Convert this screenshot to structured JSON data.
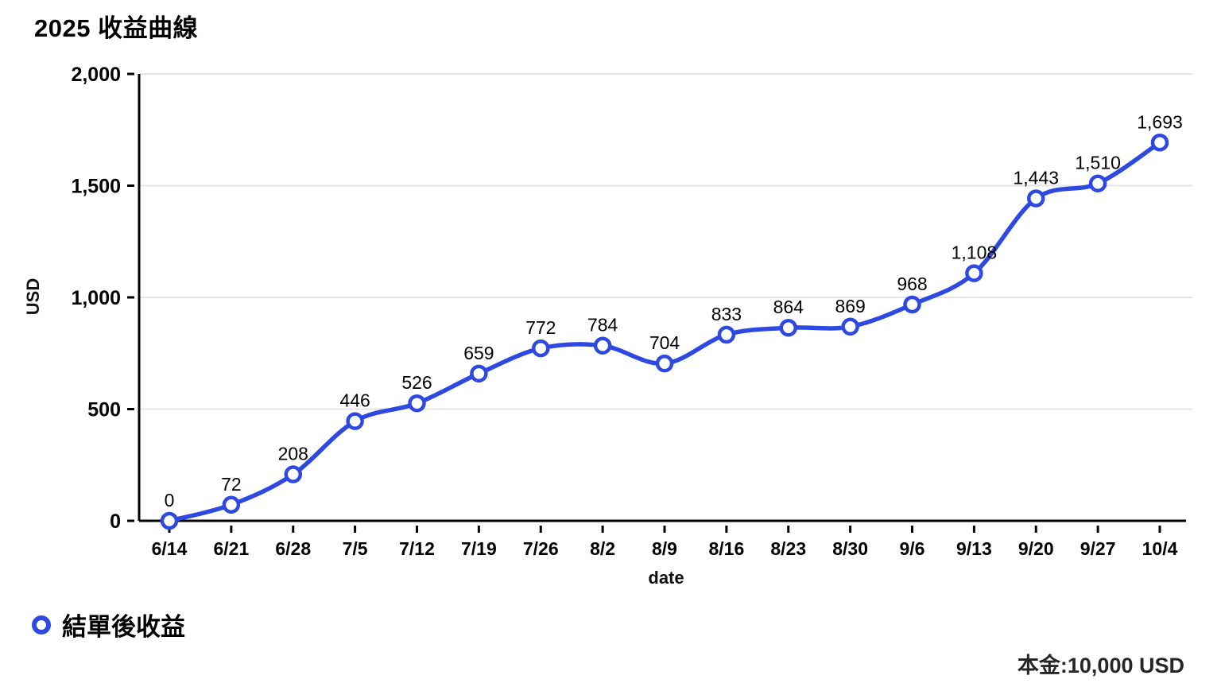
{
  "title": "2025 收益曲線",
  "axes": {
    "ylabel": "USD",
    "xlabel": "date"
  },
  "legend": {
    "label": "結單後收益",
    "marker": "open-circle"
  },
  "footnote": "本金:10,000 USD",
  "colors": {
    "line": "#2e49e1",
    "marker_fill": "#ffffff",
    "grid": "#e4e4e4",
    "axis": "#000000",
    "label_text": "#000000",
    "background": "#ffffff"
  },
  "chart_data": {
    "type": "line",
    "title": "2025 收益曲線",
    "xlabel": "date",
    "ylabel": "USD",
    "categories": [
      "6/14",
      "6/21",
      "6/28",
      "7/5",
      "7/12",
      "7/19",
      "7/26",
      "8/2",
      "8/9",
      "8/16",
      "8/23",
      "8/30",
      "9/6",
      "9/13",
      "9/20",
      "9/27",
      "10/4"
    ],
    "series": [
      {
        "name": "結單後收益",
        "values": [
          0,
          72,
          208,
          446,
          526,
          659,
          772,
          784,
          704,
          833,
          864,
          869,
          968,
          1108,
          1443,
          1510,
          1693
        ]
      }
    ],
    "point_labels": [
      "0",
      "72",
      "208",
      "446",
      "526",
      "659",
      "772",
      "784",
      "704",
      "833",
      "864",
      "869",
      "968",
      "1,108",
      "1,443",
      "1,510",
      "1,693"
    ],
    "ylim": [
      0,
      2000
    ],
    "yticks": [
      0,
      500,
      1000,
      1500,
      2000
    ],
    "ytick_labels": [
      "0",
      "500",
      "1,000",
      "1,500",
      "2,000"
    ],
    "grid": "horizontal",
    "legend_position": "bottom-left",
    "curve": "smooth",
    "marker": "open-circle"
  }
}
